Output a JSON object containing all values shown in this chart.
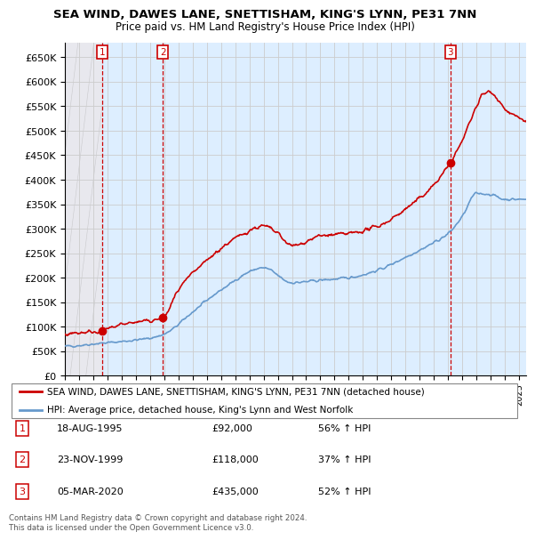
{
  "title": "SEA WIND, DAWES LANE, SNETTISHAM, KING'S LYNN, PE31 7NN",
  "subtitle": "Price paid vs. HM Land Registry's House Price Index (HPI)",
  "ylim": [
    0,
    680000
  ],
  "yticks": [
    0,
    50000,
    100000,
    150000,
    200000,
    250000,
    300000,
    350000,
    400000,
    450000,
    500000,
    550000,
    600000,
    650000
  ],
  "ytick_labels": [
    "£0",
    "£50K",
    "£100K",
    "£150K",
    "£200K",
    "£250K",
    "£300K",
    "£350K",
    "£400K",
    "£450K",
    "£500K",
    "£550K",
    "£600K",
    "£650K"
  ],
  "xlim_start": 1993.0,
  "xlim_end": 2025.5,
  "hpi_color": "#6699cc",
  "price_color": "#cc0000",
  "sale1_x": 1995.63,
  "sale1_y": 92000,
  "sale2_x": 1999.9,
  "sale2_y": 118000,
  "sale3_x": 2020.17,
  "sale3_y": 435000,
  "legend_line1": "SEA WIND, DAWES LANE, SNETTISHAM, KING'S LYNN, PE31 7NN (detached house)",
  "legend_line2": "HPI: Average price, detached house, King's Lynn and West Norfolk",
  "table_rows": [
    {
      "num": "1",
      "date": "18-AUG-1995",
      "price": "£92,000",
      "hpi": "56% ↑ HPI"
    },
    {
      "num": "2",
      "date": "23-NOV-1999",
      "price": "£118,000",
      "hpi": "37% ↑ HPI"
    },
    {
      "num": "3",
      "date": "05-MAR-2020",
      "price": "£435,000",
      "hpi": "52% ↑ HPI"
    }
  ],
  "footer": "Contains HM Land Registry data © Crown copyright and database right 2024.\nThis data is licensed under the Open Government Licence v3.0.",
  "grid_color": "#cccccc",
  "shade_color": "#ddeeff",
  "hatch_bg": "#e8e8ee"
}
